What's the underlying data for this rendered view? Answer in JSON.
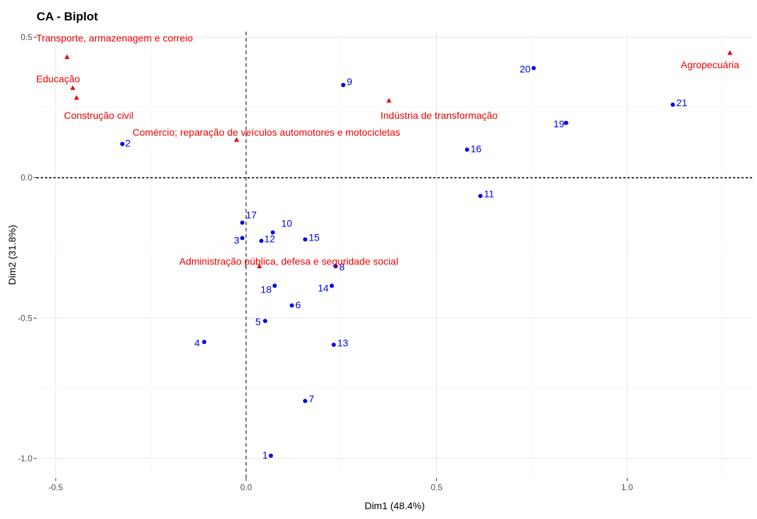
{
  "chart_data": {
    "type": "scatter",
    "title": "CA - Biplot",
    "xlabel": "Dim1 (48.4%)",
    "ylabel": "Dim2 (31.8%)",
    "xlim": [
      -0.55,
      1.33
    ],
    "ylim": [
      -1.07,
      0.52
    ],
    "x_ticks": [
      -0.5,
      0.0,
      0.5,
      1.0
    ],
    "x_tick_labels": [
      "-0.5",
      "0.0",
      "0.5",
      "1.0"
    ],
    "y_ticks": [
      -1.0,
      -0.5,
      0.0,
      0.5
    ],
    "y_tick_labels": [
      "-1.0",
      "-0.5",
      "0.0",
      "0.5"
    ],
    "grid": true,
    "row_color": "#0000ee",
    "col_color": "#ee0000",
    "rows": [
      {
        "label": "1",
        "x": 0.065,
        "y": -0.99
      },
      {
        "label": "2",
        "x": -0.325,
        "y": 0.12
      },
      {
        "label": "3",
        "x": -0.01,
        "y": -0.215
      },
      {
        "label": "4",
        "x": -0.11,
        "y": -0.585
      },
      {
        "label": "5",
        "x": 0.05,
        "y": -0.51
      },
      {
        "label": "6",
        "x": 0.12,
        "y": -0.455
      },
      {
        "label": "7",
        "x": 0.155,
        "y": -0.795
      },
      {
        "label": "8",
        "x": 0.235,
        "y": -0.315
      },
      {
        "label": "9",
        "x": 0.255,
        "y": 0.33
      },
      {
        "label": "10",
        "x": 0.07,
        "y": -0.195
      },
      {
        "label": "11",
        "x": 0.615,
        "y": -0.065
      },
      {
        "label": "12",
        "x": 0.04,
        "y": -0.225
      },
      {
        "label": "13",
        "x": 0.23,
        "y": -0.595
      },
      {
        "label": "14",
        "x": 0.225,
        "y": -0.385
      },
      {
        "label": "15",
        "x": 0.155,
        "y": -0.22
      },
      {
        "label": "16",
        "x": 0.58,
        "y": 0.1
      },
      {
        "label": "17",
        "x": -0.01,
        "y": -0.16
      },
      {
        "label": "18",
        "x": 0.075,
        "y": -0.385
      },
      {
        "label": "19",
        "x": 0.84,
        "y": 0.195
      },
      {
        "label": "20",
        "x": 0.755,
        "y": 0.39
      },
      {
        "label": "21",
        "x": 1.12,
        "y": 0.26
      }
    ],
    "columns": [
      {
        "label": "Transporte, armazenagem e correio",
        "x": -0.47,
        "y": 0.43
      },
      {
        "label": "Educação",
        "x": -0.455,
        "y": 0.32
      },
      {
        "label": "Construção civil",
        "x": -0.445,
        "y": 0.285
      },
      {
        "label": "Comércio; reparação de veículos automotores e motocicletas",
        "x": -0.025,
        "y": 0.135
      },
      {
        "label": "Indústria de transformação",
        "x": 0.375,
        "y": 0.275
      },
      {
        "label": "Agropecuária",
        "x": 1.27,
        "y": 0.445
      },
      {
        "label": "Administração pública, defesa e seguridade social",
        "x": 0.035,
        "y": -0.315
      }
    ]
  }
}
